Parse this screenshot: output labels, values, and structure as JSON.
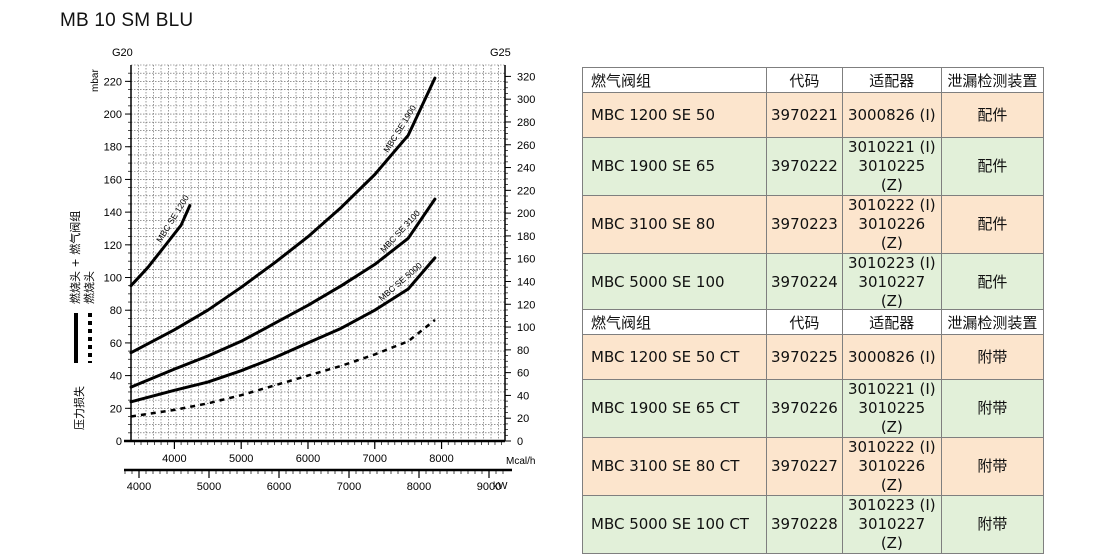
{
  "page": {
    "title": "MB 10 SM BLU"
  },
  "chart_data": {
    "type": "line",
    "left_axis_top_label": "G20",
    "right_axis_top_label": "G25",
    "ylabel": "mbar",
    "left_ticks": [
      0,
      20,
      40,
      60,
      80,
      100,
      120,
      140,
      160,
      180,
      200,
      220
    ],
    "right_ticks": [
      0,
      20,
      40,
      60,
      80,
      100,
      120,
      140,
      160,
      180,
      200,
      220,
      240,
      260,
      280,
      300,
      320
    ],
    "xlabel_mcal": "Mcal/h",
    "xlabel_kw": "kW",
    "x_ticks_mcal": [
      4000,
      5000,
      6000,
      7000,
      8000
    ],
    "x_ticks_kw": [
      4000,
      5000,
      6000,
      7000,
      8000,
      9000
    ],
    "xlim_mcal": [
      3350,
      8950
    ],
    "ylim": [
      0,
      230
    ],
    "legend": {
      "solid": "燃烧头 + 燃气阀组",
      "dashed": "燃烧头",
      "title": "压力损失"
    },
    "series": [
      {
        "name": "MBC SE 1200",
        "style": "solid",
        "x": [
          3350,
          3600,
          3850,
          4100,
          4230
        ],
        "y": [
          95,
          106,
          119,
          132,
          144
        ]
      },
      {
        "name": "MBC SE 1900",
        "style": "solid",
        "x": [
          3350,
          4000,
          4500,
          5000,
          5500,
          6000,
          6500,
          7000,
          7500,
          7900
        ],
        "y": [
          54,
          68,
          80,
          94,
          109,
          125,
          143,
          163,
          187,
          222
        ]
      },
      {
        "name": "MBC SE 3100",
        "style": "solid",
        "x": [
          3350,
          4000,
          4500,
          5000,
          5500,
          6000,
          6500,
          7000,
          7500,
          7900
        ],
        "y": [
          33,
          44,
          52,
          61,
          72,
          83,
          95,
          108,
          124,
          148
        ]
      },
      {
        "name": "MBC SE 5000",
        "style": "solid",
        "x": [
          3350,
          4000,
          4500,
          5000,
          5500,
          6000,
          6500,
          7000,
          7500,
          7900
        ],
        "y": [
          24,
          31,
          36,
          43,
          51,
          60,
          69,
          80,
          93,
          112
        ]
      },
      {
        "name": "",
        "style": "dashed",
        "x": [
          3350,
          4000,
          4500,
          5000,
          5500,
          6000,
          6500,
          7000,
          7500,
          7900
        ],
        "y": [
          15,
          19,
          23,
          28,
          34,
          40,
          46,
          53,
          61,
          74
        ]
      }
    ]
  },
  "table1": {
    "headers": [
      "燃气阀组",
      "代码",
      "适配器",
      "泄漏检测装置"
    ],
    "rows": [
      {
        "name": "MBC 1200 SE 50",
        "code": "3970221",
        "adapter": [
          "3000826 (I)"
        ],
        "leak": "配件"
      },
      {
        "name": "MBC 1900 SE 65",
        "code": "3970222",
        "adapter": [
          "3010221 (I)",
          "3010225 (Z)"
        ],
        "leak": "配件"
      },
      {
        "name": "MBC 3100 SE 80",
        "code": "3970223",
        "adapter": [
          "3010222 (I)",
          "3010226 (Z)"
        ],
        "leak": "配件"
      },
      {
        "name": "MBC 5000 SE 100",
        "code": "3970224",
        "adapter": [
          "3010223 (I)",
          "3010227 (Z)"
        ],
        "leak": "配件"
      }
    ]
  },
  "table2": {
    "headers": [
      "燃气阀组",
      "代码",
      "适配器",
      "泄漏检测装置"
    ],
    "rows": [
      {
        "name": "MBC 1200 SE 50 CT",
        "code": "3970225",
        "adapter": [
          "3000826 (I)"
        ],
        "leak": "附带"
      },
      {
        "name": "MBC 1900 SE 65 CT",
        "code": "3970226",
        "adapter": [
          "3010221 (I)",
          "3010225 (Z)"
        ],
        "leak": "附带"
      },
      {
        "name": "MBC 3100 SE 80 CT",
        "code": "3970227",
        "adapter": [
          "3010222 (I)",
          "3010226 (Z)"
        ],
        "leak": "附带"
      },
      {
        "name": "MBC 5000 SE 100 CT",
        "code": "3970228",
        "adapter": [
          "3010223 (I)",
          "3010227 (Z)"
        ],
        "leak": "附带"
      }
    ]
  }
}
